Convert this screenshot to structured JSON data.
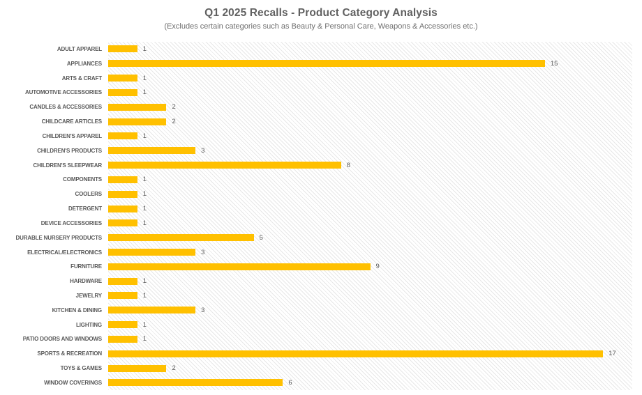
{
  "chart": {
    "title": "Q1 2025 Recalls - Product Category Analysis",
    "subtitle": "(Excludes certain categories such as Beauty & Personal Care, Weapons & Accessories etc.)"
  },
  "chart_data": {
    "type": "bar",
    "orientation": "horizontal",
    "title": "Q1 2025 Recalls - Product Category Analysis",
    "subtitle": "(Excludes certain categories such as Beauty & Personal Care, Weapons & Accessories etc.)",
    "categories": [
      "ADULT APPAREL",
      "APPLIANCES",
      "ARTS & CRAFT",
      "AUTOMOTIVE ACCESSORIES",
      "CANDLES & ACCESSORIES",
      "CHILDCARE ARTICLES",
      "CHILDREN'S APPAREL",
      "CHILDREN'S PRODUCTS",
      "CHILDREN'S SLEEPWEAR",
      "COMPONENTS",
      "COOLERS",
      "DETERGENT",
      "DEVICE ACCESSORIES",
      "DURABLE NURSERY PRODUCTS",
      "ELECTRICAL/ELECTRONICS",
      "FURNITURE",
      "HARDWARE",
      "JEWELRY",
      "KITCHEN & DINING",
      "LIGHTING",
      "PATIO DOORS AND WINDOWS",
      "SPORTS & RECREATION",
      "TOYS & GAMES",
      "WINDOW COVERINGS"
    ],
    "values": [
      1,
      15,
      1,
      1,
      2,
      2,
      1,
      3,
      8,
      1,
      1,
      1,
      1,
      5,
      3,
      9,
      1,
      1,
      3,
      1,
      1,
      17,
      2,
      6
    ],
    "xlabel": "",
    "ylabel": "",
    "xlim": [
      0,
      18
    ],
    "grid": false,
    "legend": "none",
    "data_labels": true,
    "bar_color": "#FFC000",
    "category_label_color": "#595959",
    "value_label_color": "#595959",
    "title_color": "#616161",
    "plot_background": "light-diagonal-hatch"
  }
}
